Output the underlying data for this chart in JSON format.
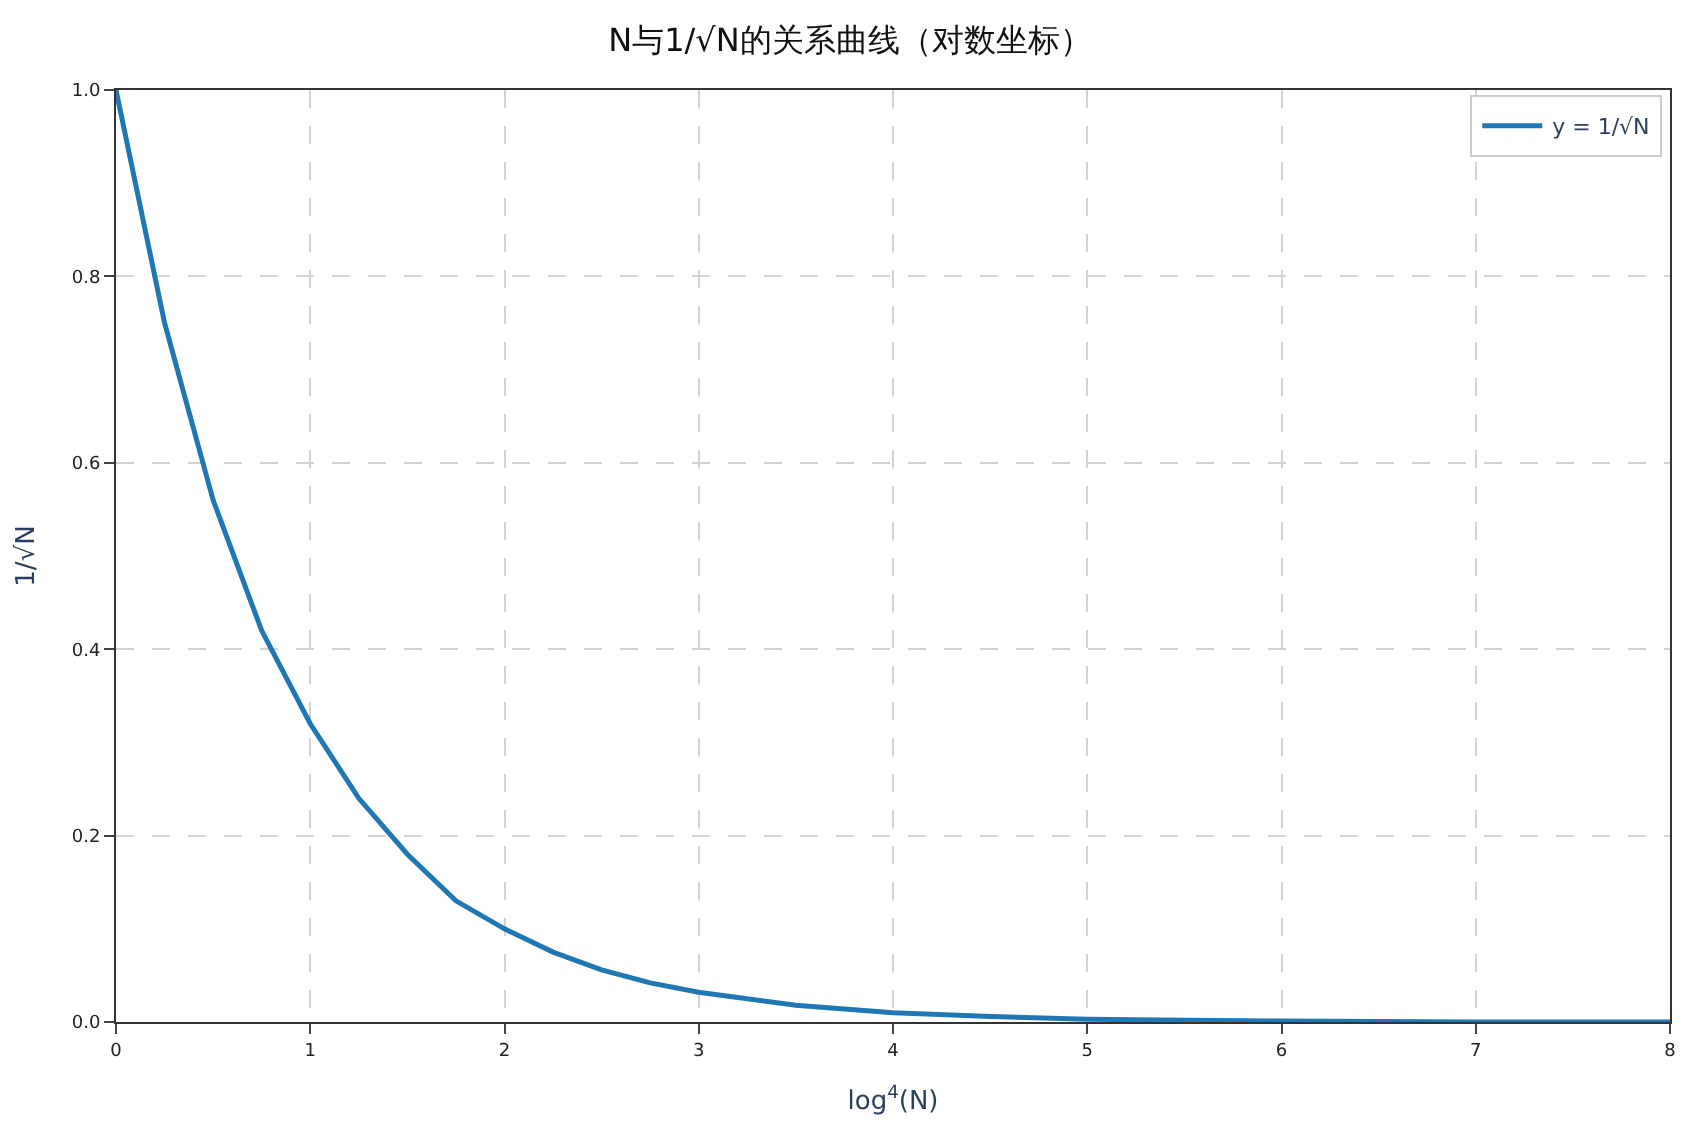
{
  "chart_data": {
    "type": "line",
    "title": "N与1/√N的关系曲线（对数坐标）",
    "xlabel": "log$^{4}$(N)",
    "ylabel": "1/√N",
    "x": [
      0,
      0.25,
      0.5,
      0.75,
      1,
      1.25,
      1.5,
      1.75,
      2,
      2.25,
      2.5,
      2.75,
      3,
      3.5,
      4,
      4.5,
      5,
      5.5,
      6,
      7,
      8
    ],
    "series": [
      {
        "name": "y = 1/√N",
        "color": "#1f77b4",
        "values": [
          1.0,
          0.75,
          0.56,
          0.42,
          0.32,
          0.24,
          0.18,
          0.13,
          0.1,
          0.075,
          0.056,
          0.042,
          0.032,
          0.018,
          0.01,
          0.006,
          0.003,
          0.002,
          0.001,
          0.0,
          0.0
        ]
      }
    ],
    "xlim": [
      0,
      8
    ],
    "xticks": [
      0,
      1,
      2,
      3,
      4,
      5,
      6,
      7,
      8
    ],
    "ylim": [
      0,
      1
    ],
    "yticks": [
      {
        "value": 0,
        "label": "0.0"
      },
      0.2,
      0.4,
      0.6,
      0.8,
      {
        "value": 1,
        "label": "1.0"
      }
    ],
    "grid": true,
    "legend": "top right",
    "marker": "none",
    "line_style": "solid"
  }
}
